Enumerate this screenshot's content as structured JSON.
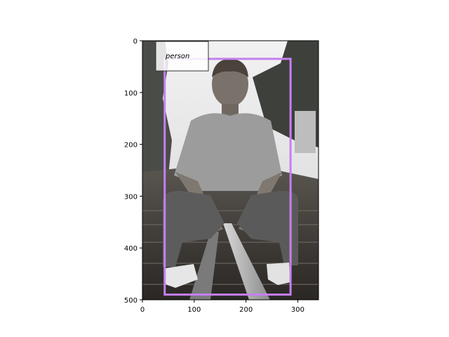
{
  "image": {
    "description_colors": {
      "sky": "#e8e8ea",
      "foliage_dark": "#3a3c38",
      "track_dark": "#2e2b28",
      "shirt": "#9a9a9a",
      "jeans": "#5a5a5a"
    },
    "extent": {
      "width": 340,
      "height": 500
    }
  },
  "axes": {
    "x_ticks": [
      0,
      100,
      200,
      300
    ],
    "y_ticks": [
      0,
      100,
      200,
      300,
      400,
      500
    ]
  },
  "detection": {
    "label": "person",
    "box": {
      "x_min": 43,
      "y_min": 35,
      "x_max": 286,
      "y_max": 490
    },
    "box_color": "#c680f0",
    "label_box_color": "#333333"
  }
}
